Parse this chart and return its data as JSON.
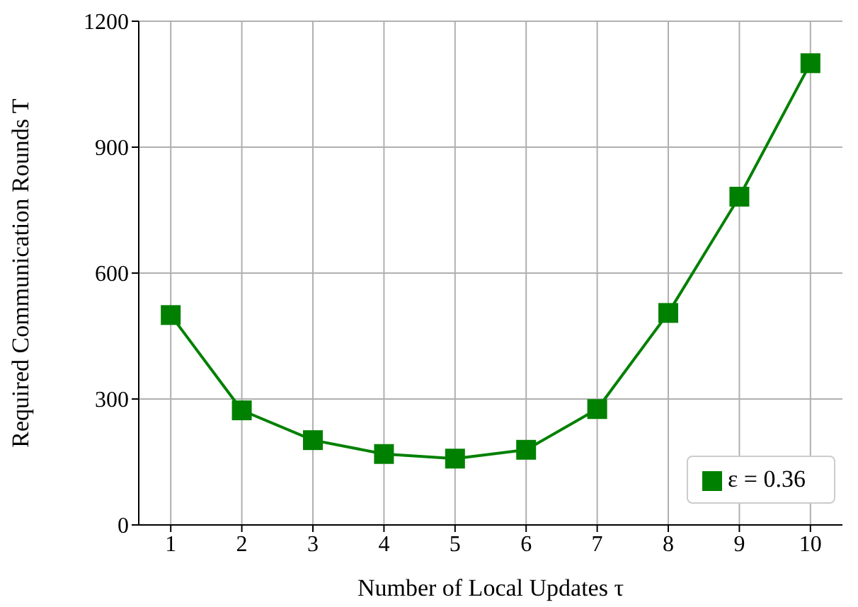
{
  "chart_data": {
    "type": "line",
    "xlabel": "Number of Local Updates τ",
    "ylabel": "Required Communication Rounds T",
    "x": [
      1,
      2,
      3,
      4,
      5,
      6,
      7,
      8,
      9,
      10
    ],
    "series": [
      {
        "name": "ε = 0.36",
        "color": "#008000",
        "values": [
          500,
          273,
          202,
          169,
          158,
          179,
          276,
          505,
          782,
          1100
        ]
      }
    ],
    "xlim": [
      0.55,
      10.45
    ],
    "xticks": [
      1,
      2,
      3,
      4,
      5,
      6,
      7,
      8,
      9,
      10
    ],
    "ylim": [
      0,
      1200
    ],
    "yticks": [
      0,
      300,
      600,
      900,
      1200
    ],
    "grid": true,
    "legend": "bottom right",
    "marker": "square",
    "line_style": "solid"
  }
}
